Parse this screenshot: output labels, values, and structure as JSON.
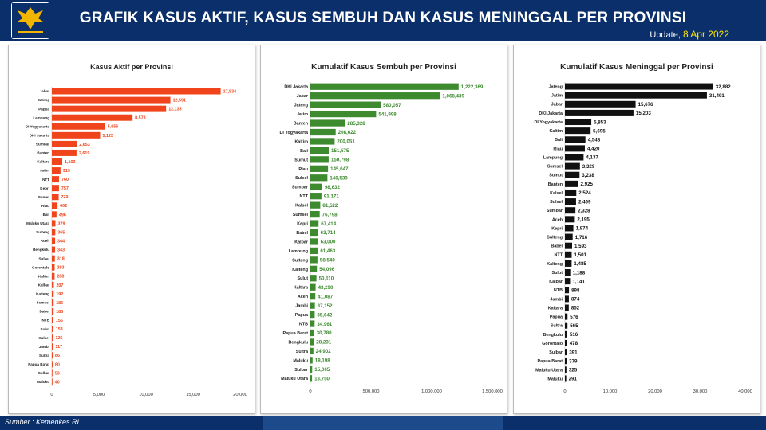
{
  "header": {
    "title": "GRAFIK KASUS AKTIF, KASUS SEMBUH DAN KASUS MENINGGAL PER PROVINSI",
    "update_label": "Update,",
    "update_date": "8 Apr 2022"
  },
  "footer": {
    "source": "Sumber : Kemenkes RI"
  },
  "colors": {
    "header_bg": "#0a2f6b",
    "active": "#f0441c",
    "recovered": "#3d8a2f",
    "deaths": "#111111"
  },
  "chart_data": [
    {
      "type": "bar",
      "orientation": "horizontal",
      "title": "Kasus Aktif per Provinsi",
      "color": "#f0441c",
      "xlim": [
        0,
        20000
      ],
      "ticks": [
        "0",
        "5,000",
        "10,000",
        "15,000",
        "20,000"
      ],
      "categories": [
        "Jabar",
        "Jateng",
        "Papua",
        "Lampung",
        "DI Yogyakarta",
        "DKI Jakarta",
        "Sumbar",
        "Banten",
        "Kaltara",
        "Jatim",
        "NTT",
        "Kepri",
        "Sumut",
        "Riau",
        "Bali",
        "Maluku Utara",
        "Sulteng",
        "Aceh",
        "Bengkulu",
        "Sulsel",
        "Gorontalo",
        "Kaltim",
        "Kalbar",
        "Kalteng",
        "Sumsel",
        "Babel",
        "NTB",
        "Sulut",
        "Kalsel",
        "Jambi",
        "Sultra",
        "Papua Barat",
        "Sulbar",
        "Maluku"
      ],
      "values": [
        17934,
        12591,
        12135,
        8573,
        5656,
        5125,
        2653,
        2619,
        1103,
        919,
        760,
        757,
        723,
        602,
        496,
        379,
        365,
        344,
        343,
        318,
        293,
        288,
        207,
        192,
        186,
        183,
        156,
        153,
        125,
        117,
        86,
        80,
        53,
        40
      ],
      "labels": [
        "17,934",
        "12,591",
        "12,135",
        "8,573",
        "5,656",
        "5,125",
        "2,653",
        "2,619",
        "1,103",
        "919",
        "760",
        "757",
        "723",
        "602",
        "496",
        "379",
        "365",
        "344",
        "343",
        "318",
        "293",
        "288",
        "207",
        "192",
        "186",
        "183",
        "156",
        "153",
        "125",
        "117",
        "86",
        "80",
        "53",
        "40"
      ]
    },
    {
      "type": "bar",
      "orientation": "horizontal",
      "title": "Kumulatif Kasus Sembuh per Provinsi",
      "color": "#3d8a2f",
      "xlim": [
        0,
        1500000
      ],
      "ticks": [
        "0",
        "500,000",
        "1,000,000",
        "1,500,000"
      ],
      "categories": [
        "DKI Jakarta",
        "Jabar",
        "Jateng",
        "Jatim",
        "Banten",
        "DI Yogyakarta",
        "Kaltim",
        "Bali",
        "Sumut",
        "Riau",
        "Sulsel",
        "Sumbar",
        "NTT",
        "Kalsel",
        "Sumsel",
        "Kepri",
        "Babel",
        "Kalbar",
        "Lampung",
        "Sulteng",
        "Kalteng",
        "Sulut",
        "Kaltara",
        "Aceh",
        "Jambi",
        "Papua",
        "NTB",
        "Papua Barat",
        "Bengkulu",
        "Sultra",
        "Maluku",
        "Sulbar",
        "Maluku Utara"
      ],
      "values": [
        1222369,
        1068439,
        580057,
        541998,
        285328,
        208622,
        200051,
        151575,
        150798,
        145647,
        140539,
        98632,
        91171,
        81522,
        76798,
        67414,
        63714,
        63000,
        61463,
        58540,
        54096,
        50110,
        43290,
        41087,
        37152,
        35642,
        34961,
        30780,
        28231,
        24902,
        18198,
        15065,
        13750
      ],
      "labels": [
        "1,222,369",
        "1,068,439",
        "580,057",
        "541,998",
        "285,328",
        "208,622",
        "200,051",
        "151,575",
        "150,798",
        "145,647",
        "140,539",
        "98,632",
        "91,171",
        "81,522",
        "76,798",
        "67,414",
        "63,714",
        "63,000",
        "61,463",
        "58,540",
        "54,096",
        "50,110",
        "43,290",
        "41,087",
        "37,152",
        "35,642",
        "34,961",
        "30,780",
        "28,231",
        "24,902",
        "18,198",
        "15,065",
        "13,750"
      ]
    },
    {
      "type": "bar",
      "orientation": "horizontal",
      "title": "Kumulatif Kasus Meninggal per Provinsi",
      "color": "#111111",
      "xlim": [
        0,
        40000
      ],
      "ticks": [
        "0",
        "10,000",
        "20,000",
        "30,000",
        "40,000"
      ],
      "categories": [
        "Jateng",
        "Jatim",
        "Jabar",
        "DKI Jakarta",
        "DI Yogyakarta",
        "Kaltim",
        "Bali",
        "Riau",
        "Lampung",
        "Sumsel",
        "Sumut",
        "Banten",
        "Kalsel",
        "Sulsel",
        "Sumbar",
        "Aceh",
        "Kepri",
        "Sulteng",
        "Babel",
        "NTT",
        "Kalteng",
        "Sulut",
        "Kalbar",
        "NTB",
        "Jambi",
        "Kaltara",
        "Papua",
        "Sultra",
        "Bengkulu",
        "Gorontalo",
        "Sulbar",
        "Papua Barat",
        "Maluku Utara",
        "Maluku"
      ],
      "values": [
        32882,
        31491,
        15676,
        15203,
        5853,
        5695,
        4548,
        4420,
        4137,
        3329,
        3238,
        2925,
        2524,
        2469,
        2328,
        2195,
        1874,
        1716,
        1593,
        1501,
        1485,
        1188,
        1141,
        898,
        874,
        852,
        576,
        565,
        516,
        478,
        391,
        379,
        325,
        291
      ],
      "labels": [
        "32,882",
        "31,491",
        "15,676",
        "15,203",
        "5,853",
        "5,695",
        "4,548",
        "4,420",
        "4,137",
        "3,329",
        "3,238",
        "2,925",
        "2,524",
        "2,469",
        "2,328",
        "2,195",
        "1,874",
        "1,716",
        "1,593",
        "1,501",
        "1,485",
        "1,188",
        "1,141",
        "898",
        "874",
        "852",
        "576",
        "565",
        "516",
        "478",
        "391",
        "379",
        "325",
        "291"
      ]
    }
  ]
}
